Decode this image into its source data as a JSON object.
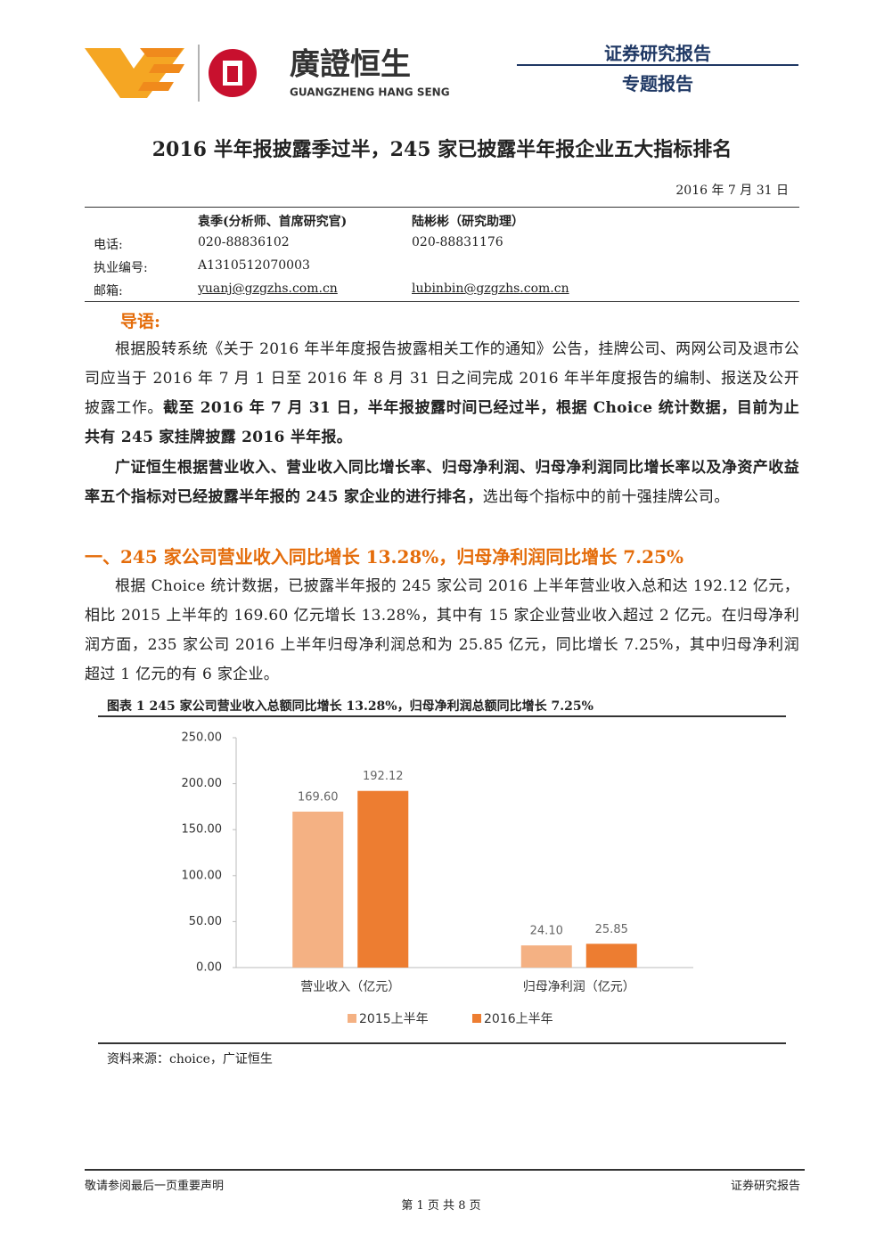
{
  "header": {
    "brand": "廣證恒生",
    "brand_en": "GUANGZHENG HANG SENG",
    "report_type": "证券研究报告",
    "report_subtype": "专题报告"
  },
  "title": "2016 半年报披露季过半，245 家已披露半年报企业五大指标排名",
  "date": "2016 年 7 月 31 日",
  "contacts": {
    "labels": {
      "phone": "电话:",
      "license": "执业编号:",
      "email": "邮箱:"
    },
    "people": [
      {
        "name": "袁季(分析师、首席研究官)",
        "phone": "020-88836102",
        "license": "A1310512070003",
        "email": "yuanj@gzgzhs.com.cn"
      },
      {
        "name": "陆彬彬（研究助理）",
        "phone": "020-88831176",
        "email": "lubinbin@gzgzhs.com.cn"
      }
    ]
  },
  "intro": {
    "heading": "导语:",
    "paragraphs": [
      [
        {
          "text": "根据股转系统《关于 2016 年半年度报告披露相关工作的通知》公告，挂牌公司、两网公司及退市公司应当于 2016 年 7 月 1 日至 2016 年 8 月 31 日之间完成 2016 年半年度报告的编制、报送及公开披露工作。",
          "bold": false
        },
        {
          "text": "截至 2016 年 7 月 31 日，半年报披露时间已经过半，根据 Choice 统计数据，目前为止共有 245 家挂牌披露 2016 半年报。",
          "bold": true
        }
      ],
      [
        {
          "text": "广证恒生根据营业收入、营业收入同比增长率、归母净利润、归母净利润同比增长率以及净资产收益率五个指标对已经披露半年报的 245 家企业的进行排名，",
          "bold": true
        },
        {
          "text": "选出每个指标中的前十强挂牌公司。",
          "bold": false
        }
      ]
    ]
  },
  "section_1": {
    "heading": "一、245 家公司营业收入同比增长 13.28%，归母净利润同比增长 7.25%",
    "paragraphs": [
      [
        {
          "text": "根据 Choice 统计数据，已披露半年报的 245 家公司 2016 上半年营业收入总和达 192.12 亿元，相比 2015 上半年的 169.60 亿元增长 13.28%，其中有 15 家企业营业收入超过 2 亿元。在归母净利润方面，235 家公司 2016 上半年归母净利润总和为 25.85 亿元，同比增长 7.25%，其中归母净利润超过 1 亿元的有 6 家企业。",
          "bold": false
        }
      ]
    ]
  },
  "figure_1": {
    "caption": "图表 1 245 家公司营业收入总额同比增长 13.28%，归母净利润总额同比增长 7.25%",
    "source": "资料来源：choice，广证恒生"
  },
  "chart_data": {
    "type": "bar",
    "categories": [
      "营业收入（亿元）",
      "归母净利润（亿元）"
    ],
    "series": [
      {
        "name": "2015上半年",
        "color": "#f4b183",
        "values": [
          169.6,
          24.1
        ],
        "value_labels": [
          "169.60",
          "24.10"
        ]
      },
      {
        "name": "2016上半年",
        "color": "#ed7d31",
        "values": [
          192.12,
          25.85
        ],
        "value_labels": [
          "192.12",
          "25.85"
        ]
      }
    ],
    "ylim": [
      0,
      250
    ],
    "yticks": [
      {
        "value": 0,
        "label": "0.00"
      },
      {
        "value": 50,
        "label": "50.00"
      },
      {
        "value": 100,
        "label": "100.00"
      },
      {
        "value": 150,
        "label": "150.00"
      },
      {
        "value": 200,
        "label": "200.00"
      },
      {
        "value": 250,
        "label": "250.00"
      }
    ],
    "grid": false,
    "legend": "bottom"
  },
  "footer": {
    "notice": "敬请参阅最后一页重要声明",
    "label": "证券研究报告",
    "page": "第 1 页 共 8 页"
  }
}
